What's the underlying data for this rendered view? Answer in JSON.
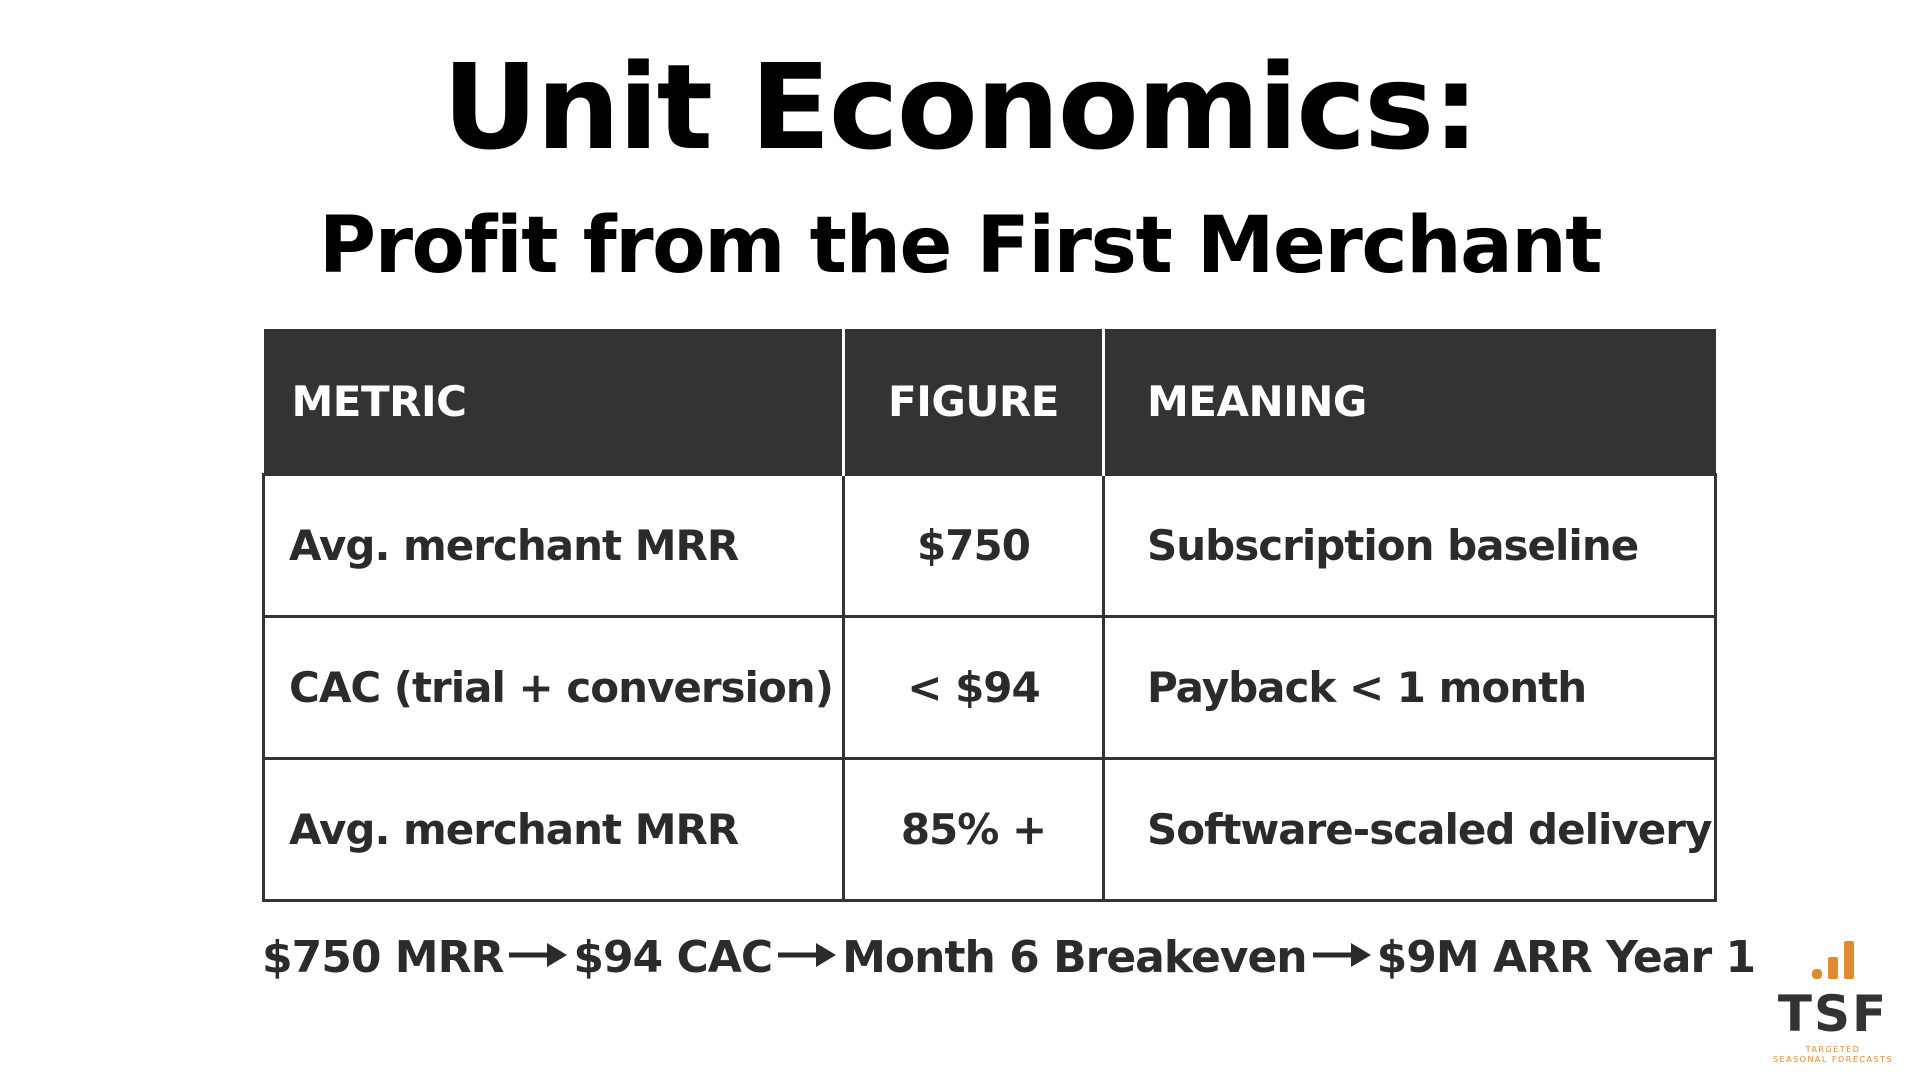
{
  "header": {
    "title": "Unit Economics:",
    "subtitle": "Profit from the First Merchant"
  },
  "table": {
    "columns": [
      "METRIC",
      "FIGURE",
      "MEANING"
    ],
    "rows": [
      {
        "metric": "Avg. merchant MRR",
        "figure": "$750",
        "meaning": "Subscription baseline"
      },
      {
        "metric": "CAC (trial + conversion)",
        "figure": "< $94",
        "meaning": "Payback < 1 month"
      },
      {
        "metric": "Avg. merchant MRR",
        "figure": "85% +",
        "meaning": "Software-scaled delivery"
      }
    ]
  },
  "flow": {
    "steps": [
      "$750 MRR",
      "$94 CAC",
      "Month 6 Breakeven",
      "$9M ARR Year 1"
    ],
    "arrow_icon": "right-arrow-icon"
  },
  "logo": {
    "mark": "TSF",
    "tagline_1": "TARGETED",
    "tagline_2": "SEASONAL FORECASTS",
    "icon": "bar-chart-icon",
    "accent_color": "#e08a2e",
    "mark_color": "#333333"
  },
  "colors": {
    "header_bg": "#333333",
    "header_text": "#ffffff",
    "border": "#333333",
    "text": "#2b2b2b"
  }
}
